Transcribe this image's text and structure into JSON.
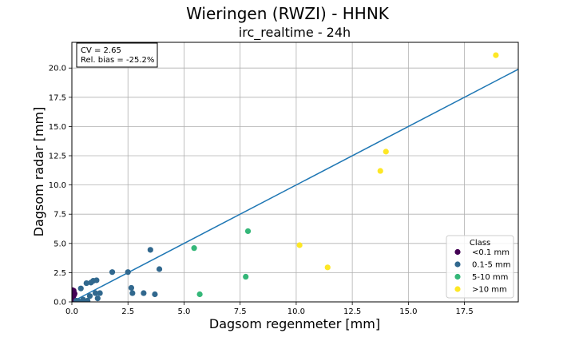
{
  "chart_data": {
    "type": "scatter",
    "suptitle": "Wieringen (RWZI) - HHNK",
    "title": "irc_realtime - 24h",
    "xlabel": "Dagsom regenmeter [mm]",
    "ylabel": "Dagsom radar [mm]",
    "xlim": [
      0,
      19.9
    ],
    "ylim": [
      0,
      22.2
    ],
    "xticks": [
      "0.0",
      "2.5",
      "5.0",
      "7.5",
      "10.0",
      "12.5",
      "15.0",
      "17.5"
    ],
    "xtick_values": [
      0,
      2.5,
      5,
      7.5,
      10,
      12.5,
      15,
      17.5
    ],
    "yticks": [
      "0.0",
      "2.5",
      "5.0",
      "7.5",
      "10.0",
      "12.5",
      "15.0",
      "17.5",
      "20.0"
    ],
    "ytick_values": [
      0,
      2.5,
      5,
      7.5,
      10,
      12.5,
      15,
      17.5,
      20
    ],
    "grid": true,
    "stats": {
      "cv": "CV = 2.65",
      "bias": "Rel. bias = -25.2%"
    },
    "reference_line": {
      "slope": 1,
      "color": "#1f77b4"
    },
    "legend": {
      "title": "Class",
      "placement": "lower-right",
      "entries": [
        {
          "label": "<0.1 mm",
          "color": "#440154"
        },
        {
          "label": "0.1-5 mm",
          "color": "#31688e"
        },
        {
          "label": "5-10 mm",
          "color": "#35b779"
        },
        {
          "label": ">10 mm",
          "color": "#fde725"
        }
      ]
    },
    "series": [
      {
        "class": "<0.1 mm",
        "color": "#440154",
        "points": [
          [
            0.03,
            1.0
          ],
          [
            0.05,
            0.85
          ],
          [
            0.08,
            0.95
          ],
          [
            0.1,
            0.6
          ],
          [
            0.05,
            0.4
          ],
          [
            0.1,
            0.15
          ],
          [
            0.02,
            0.05
          ],
          [
            0.07,
            0.02
          ],
          [
            0.12,
            0.7
          ]
        ]
      },
      {
        "class": "0.1-5 mm",
        "color": "#31688e",
        "points": [
          [
            0.2,
            0.1
          ],
          [
            0.3,
            0.05
          ],
          [
            0.4,
            1.15
          ],
          [
            0.5,
            0.2
          ],
          [
            0.55,
            0.0
          ],
          [
            0.65,
            1.6
          ],
          [
            0.7,
            0.1
          ],
          [
            0.8,
            0.5
          ],
          [
            0.85,
            1.65
          ],
          [
            0.95,
            1.8
          ],
          [
            1.05,
            0.75
          ],
          [
            1.1,
            1.85
          ],
          [
            1.15,
            0.3
          ],
          [
            1.25,
            0.75
          ],
          [
            1.8,
            2.55
          ],
          [
            2.5,
            2.55
          ],
          [
            2.65,
            1.2
          ],
          [
            2.7,
            0.75
          ],
          [
            3.2,
            0.75
          ],
          [
            3.5,
            4.45
          ],
          [
            3.7,
            0.65
          ],
          [
            3.9,
            2.8
          ]
        ]
      },
      {
        "class": "5-10 mm",
        "color": "#35b779",
        "points": [
          [
            5.45,
            4.6
          ],
          [
            5.7,
            0.65
          ],
          [
            7.75,
            2.15
          ],
          [
            7.85,
            6.05
          ]
        ]
      },
      {
        "class": ">10 mm",
        "color": "#fde725",
        "points": [
          [
            10.15,
            4.85
          ],
          [
            11.4,
            2.95
          ],
          [
            13.75,
            11.2
          ],
          [
            14.0,
            12.85
          ],
          [
            18.9,
            21.1
          ]
        ]
      }
    ]
  }
}
